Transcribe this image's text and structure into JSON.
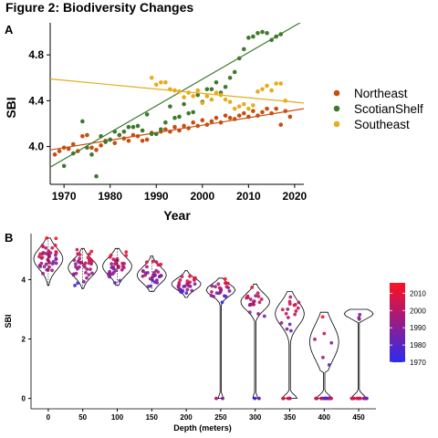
{
  "figure": {
    "title": "Figure 2: Biodiversity Changes"
  },
  "chart_data": [
    {
      "panel": "A",
      "type": "scatter",
      "xlabel": "Year",
      "ylabel": "SBI",
      "xlim": [
        1967,
        2022
      ],
      "ylim": [
        3.67,
        5.08
      ],
      "xticks": [
        1970,
        1980,
        1990,
        2000,
        2010,
        2020
      ],
      "yticks": [
        4.0,
        4.4,
        4.8
      ],
      "ytick_labels": [
        "4.0",
        "4.4",
        "4.8"
      ],
      "grid": false,
      "legend_position": "right",
      "series": [
        {
          "name": "Northeast",
          "color": "#C84E0F",
          "fit": [
            [
              1967,
              3.97
            ],
            [
              2022,
              4.33
            ]
          ],
          "points": [
            [
              1968,
              3.93
            ],
            [
              1969,
              3.96
            ],
            [
              1970,
              3.99
            ],
            [
              1971,
              3.98
            ],
            [
              1972,
              4.02
            ],
            [
              1973,
              3.96
            ],
            [
              1974,
              4.09
            ],
            [
              1975,
              4.1
            ],
            [
              1976,
              3.99
            ],
            [
              1977,
              3.97
            ],
            [
              1978,
              4.01
            ],
            [
              1979,
              4.05
            ],
            [
              1980,
              4.06
            ],
            [
              1981,
              4.03
            ],
            [
              1982,
              4.1
            ],
            [
              1983,
              4.07
            ],
            [
              1984,
              4.05
            ],
            [
              1985,
              4.1
            ],
            [
              1986,
              4.09
            ],
            [
              1987,
              4.05
            ],
            [
              1988,
              4.06
            ],
            [
              1989,
              4.12
            ],
            [
              1990,
              4.11
            ],
            [
              1991,
              4.13
            ],
            [
              1992,
              4.15
            ],
            [
              1993,
              4.13
            ],
            [
              1994,
              4.17
            ],
            [
              1995,
              4.14
            ],
            [
              1996,
              4.18
            ],
            [
              1997,
              4.16
            ],
            [
              1998,
              4.21
            ],
            [
              1999,
              4.18
            ],
            [
              2000,
              4.23
            ],
            [
              2001,
              4.19
            ],
            [
              2002,
              4.22
            ],
            [
              2003,
              4.25
            ],
            [
              2004,
              4.21
            ],
            [
              2005,
              4.27
            ],
            [
              2006,
              4.25
            ],
            [
              2007,
              4.24
            ],
            [
              2008,
              4.27
            ],
            [
              2009,
              4.29
            ],
            [
              2010,
              4.26
            ],
            [
              2011,
              4.31
            ],
            [
              2012,
              4.27
            ],
            [
              2013,
              4.3
            ],
            [
              2014,
              4.33
            ],
            [
              2015,
              4.29
            ],
            [
              2016,
              4.33
            ],
            [
              2017,
              4.19
            ],
            [
              2018,
              4.31
            ],
            [
              2019,
              4.26
            ]
          ]
        },
        {
          "name": "ScotianShelf",
          "color": "#3E7A2E",
          "fit": [
            [
              1967,
              3.82
            ],
            [
              2022,
              5.1
            ]
          ],
          "points": [
            [
              1970,
              3.83
            ],
            [
              1972,
              3.94
            ],
            [
              1974,
              4.22
            ],
            [
              1975,
              3.99
            ],
            [
              1976,
              3.93
            ],
            [
              1977,
              3.74
            ],
            [
              1978,
              4.09
            ],
            [
              1979,
              4.04
            ],
            [
              1980,
              4.06
            ],
            [
              1981,
              4.13
            ],
            [
              1982,
              4.1
            ],
            [
              1983,
              4.13
            ],
            [
              1984,
              4.17
            ],
            [
              1985,
              4.17
            ],
            [
              1986,
              4.18
            ],
            [
              1987,
              4.14
            ],
            [
              1988,
              4.28
            ],
            [
              1989,
              4.11
            ],
            [
              1990,
              4.11
            ],
            [
              1991,
              4.15
            ],
            [
              1992,
              4.21
            ],
            [
              1993,
              4.35
            ],
            [
              1994,
              4.25
            ],
            [
              1995,
              4.26
            ],
            [
              1996,
              4.37
            ],
            [
              1997,
              4.29
            ],
            [
              1998,
              4.3
            ],
            [
              1999,
              4.45
            ],
            [
              2000,
              4.39
            ],
            [
              2001,
              4.5
            ],
            [
              2002,
              4.5
            ],
            [
              2003,
              4.56
            ],
            [
              2004,
              4.47
            ],
            [
              2005,
              4.52
            ],
            [
              2006,
              4.6
            ],
            [
              2007,
              4.65
            ],
            [
              2008,
              4.77
            ],
            [
              2009,
              4.85
            ],
            [
              2010,
              4.95
            ],
            [
              2011,
              4.96
            ],
            [
              2012,
              4.99
            ],
            [
              2013,
              5.0
            ],
            [
              2014,
              4.99
            ],
            [
              2015,
              4.93
            ],
            [
              2016,
              4.96
            ],
            [
              2017,
              4.98
            ]
          ]
        },
        {
          "name": "Southeast",
          "color": "#E6AC1C",
          "fit": [
            [
              1967,
              4.59
            ],
            [
              2022,
              4.38
            ]
          ],
          "points": [
            [
              1989,
              4.6
            ],
            [
              1990,
              4.54
            ],
            [
              1991,
              4.56
            ],
            [
              1992,
              4.56
            ],
            [
              1993,
              4.5
            ],
            [
              1994,
              4.49
            ],
            [
              1995,
              4.48
            ],
            [
              1996,
              4.43
            ],
            [
              1997,
              4.47
            ],
            [
              1998,
              4.44
            ],
            [
              1999,
              4.49
            ],
            [
              2000,
              4.38
            ],
            [
              2001,
              4.44
            ],
            [
              2002,
              4.41
            ],
            [
              2003,
              4.47
            ],
            [
              2004,
              4.45
            ],
            [
              2005,
              4.41
            ],
            [
              2006,
              4.39
            ],
            [
              2007,
              4.33
            ],
            [
              2008,
              4.35
            ],
            [
              2009,
              4.37
            ],
            [
              2010,
              4.33
            ],
            [
              2011,
              4.36
            ],
            [
              2012,
              4.48
            ],
            [
              2013,
              4.5
            ],
            [
              2014,
              4.53
            ],
            [
              2015,
              4.49
            ],
            [
              2016,
              4.55
            ],
            [
              2017,
              4.55
            ],
            [
              2018,
              4.4
            ]
          ]
        }
      ]
    },
    {
      "panel": "B",
      "type": "violin",
      "xlabel": "Depth (meters)",
      "ylabel": "SBI",
      "categories": [
        "0",
        "50",
        "100",
        "150",
        "200",
        "250",
        "300",
        "350",
        "400",
        "450"
      ],
      "ylim": [
        -0.35,
        5.55
      ],
      "yticks": [
        0,
        2,
        4
      ],
      "grid": false,
      "point_color_scale": {
        "variable": "year",
        "range": [
          1970,
          2016
        ],
        "low": "#2B2BF0",
        "high": "#FF1020",
        "ticks": [
          1970,
          1980,
          1990,
          2000,
          2010
        ]
      },
      "groups": [
        {
          "depth": "0",
          "min": 3.8,
          "max": 5.4,
          "mean": 4.7,
          "sd": 0.36,
          "zeros": 0
        },
        {
          "depth": "50",
          "min": 3.7,
          "max": 5.05,
          "mean": 4.4,
          "sd": 0.3,
          "zeros": 0
        },
        {
          "depth": "100",
          "min": 3.8,
          "max": 5.05,
          "mean": 4.45,
          "sd": 0.3,
          "zeros": 0
        },
        {
          "depth": "150",
          "min": 3.6,
          "max": 4.8,
          "mean": 4.15,
          "sd": 0.28,
          "zeros": 0
        },
        {
          "depth": "200",
          "min": 3.4,
          "max": 4.3,
          "mean": 3.85,
          "sd": 0.2,
          "zeros": 0
        },
        {
          "depth": "250",
          "min": 3.2,
          "max": 4.05,
          "mean": 3.65,
          "sd": 0.2,
          "zeros": 2
        },
        {
          "depth": "300",
          "min": 2.6,
          "max": 3.85,
          "mean": 3.25,
          "sd": 0.28,
          "zeros": 2
        },
        {
          "depth": "350",
          "min": 1.8,
          "max": 3.6,
          "mean": 2.85,
          "sd": 0.4,
          "zeros": 6
        },
        {
          "depth": "400",
          "min": 0.9,
          "max": 2.9,
          "mean": 1.9,
          "sd": 0.6,
          "zeros": 18
        },
        {
          "depth": "450",
          "min": 2.6,
          "max": 3.0,
          "mean": 2.85,
          "sd": 0.15,
          "zeros": 14
        }
      ]
    }
  ]
}
